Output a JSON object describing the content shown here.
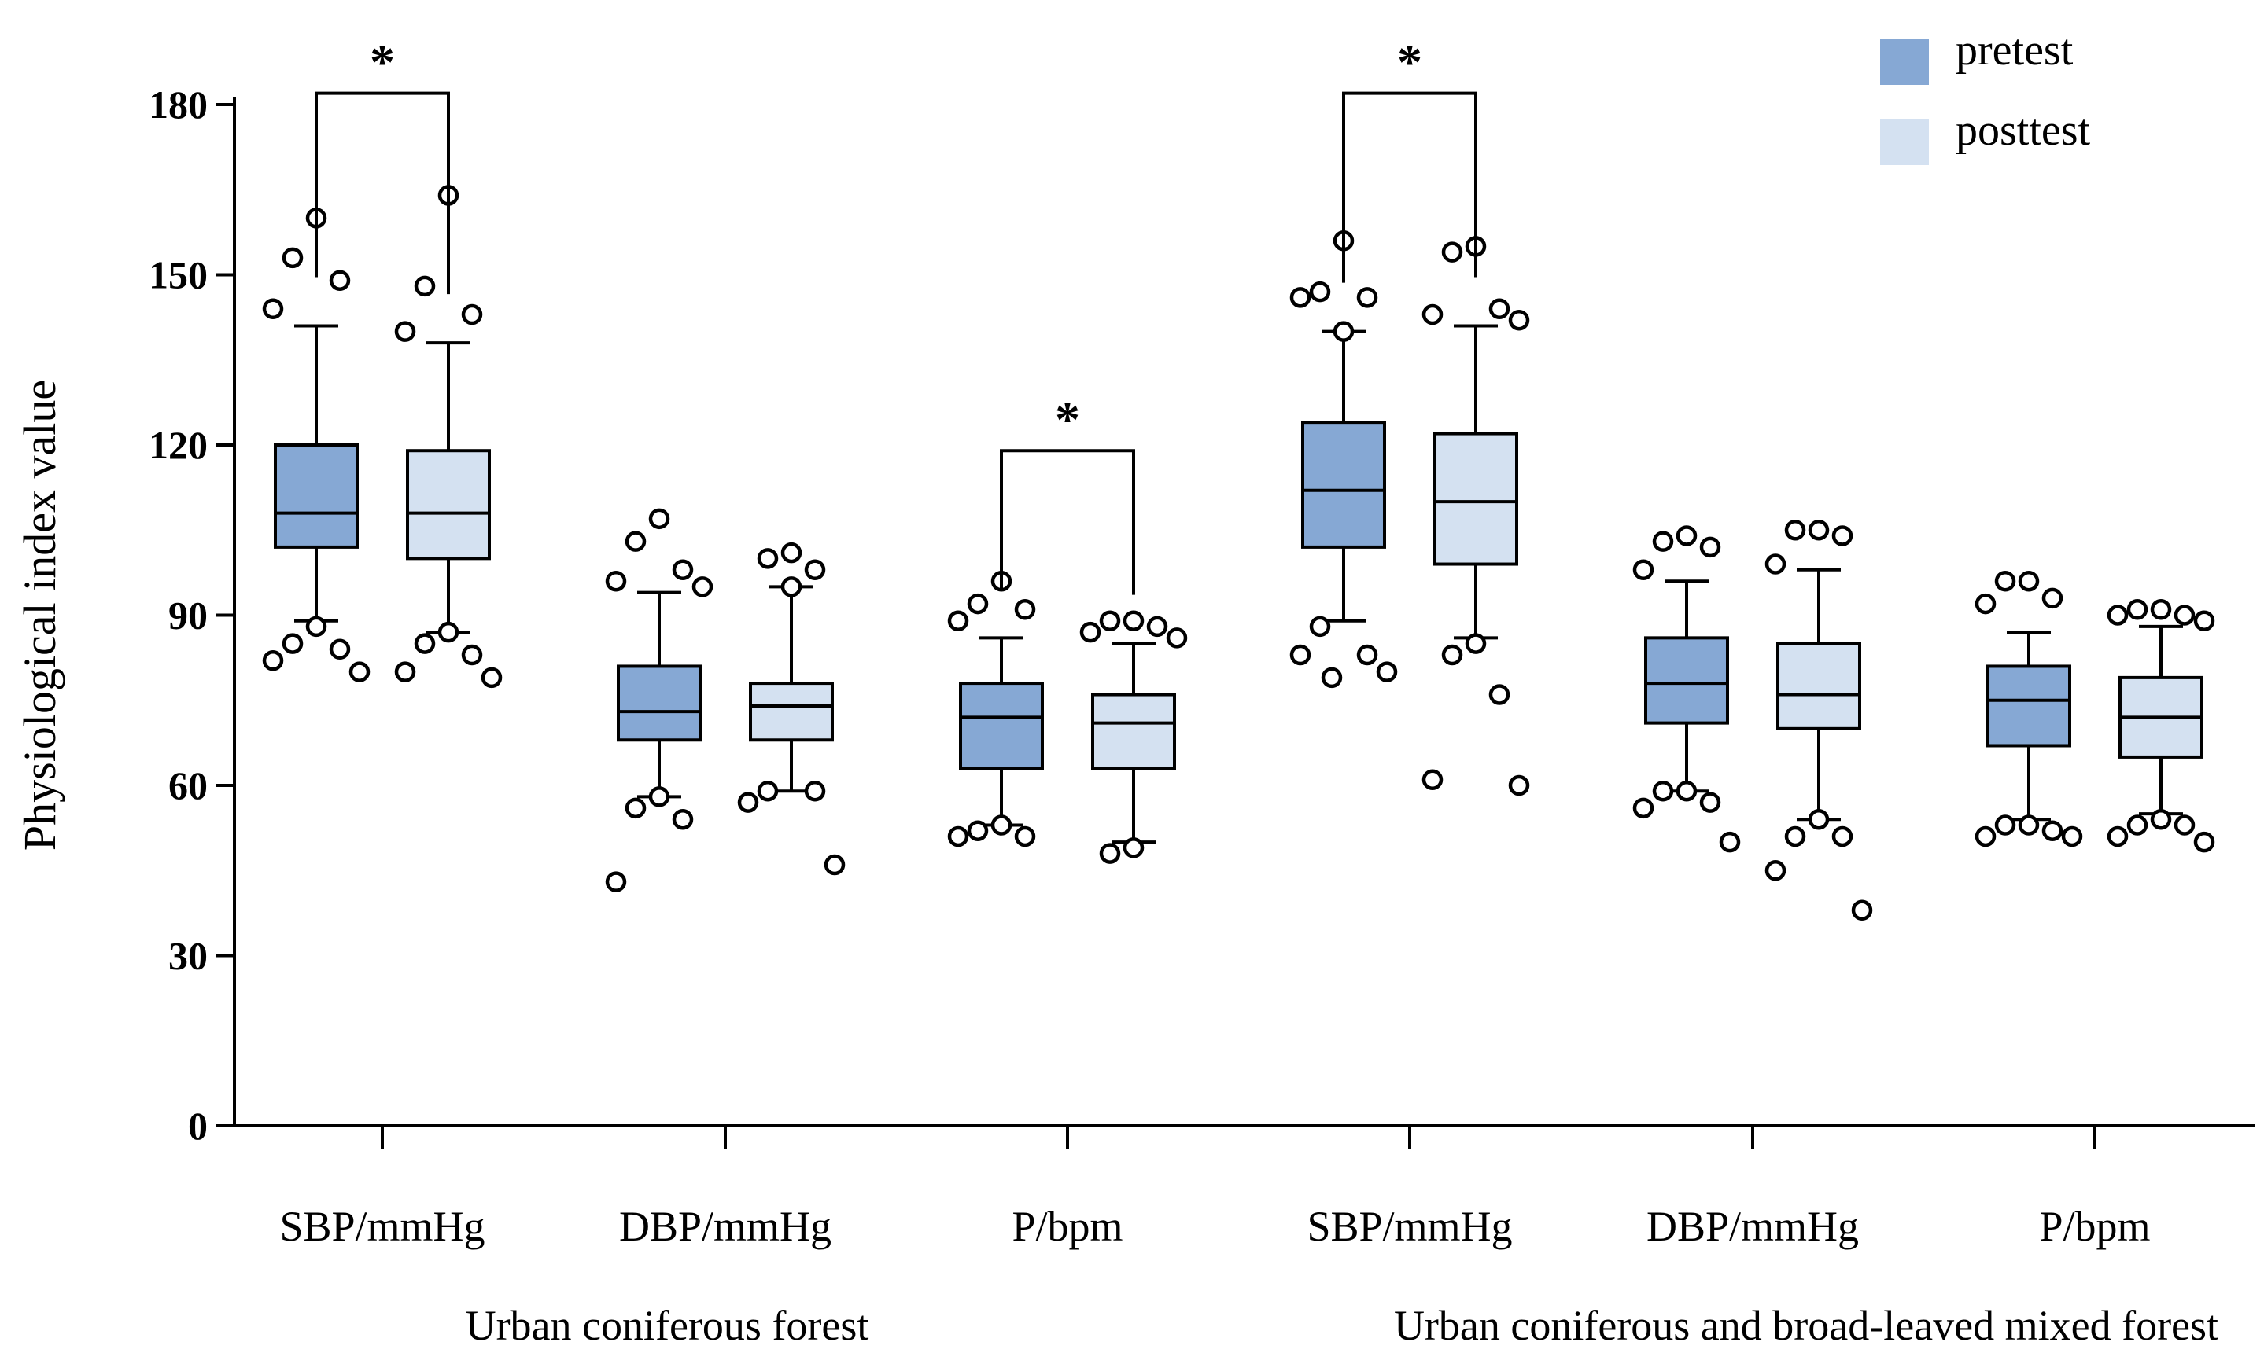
{
  "chart_data": {
    "type": "boxplot",
    "ylabel": "Physiological index value",
    "xlabel": "",
    "ylim": [
      0,
      180
    ],
    "yticks": [
      0,
      30,
      60,
      90,
      120,
      150,
      180
    ],
    "grid": false,
    "legend_position": "top-right",
    "series": [
      {
        "name": "pretest",
        "color": "#86a8d4"
      },
      {
        "name": "posttest",
        "color": "#d4e1f1"
      }
    ],
    "categories": [
      "SBP/mmHg",
      "DBP/mmHg",
      "P/bpm",
      "SBP/mmHg",
      "DBP/mmHg",
      "P/bpm"
    ],
    "groups": [
      {
        "label": "Urban coniferous forest",
        "category_indices": [
          0,
          1,
          2
        ]
      },
      {
        "label": "Urban coniferous and broad-leaved mixed forest",
        "category_indices": [
          3,
          4,
          5
        ]
      }
    ],
    "boxes": [
      {
        "category": 0,
        "series": "pretest",
        "whisker_low": 89,
        "q1": 102,
        "median": 108,
        "q3": 120,
        "whisker_high": 141,
        "outliers": [
          160,
          153,
          149,
          144,
          88,
          85,
          84,
          82,
          80
        ]
      },
      {
        "category": 0,
        "series": "posttest",
        "whisker_low": 87,
        "q1": 100,
        "median": 108,
        "q3": 119,
        "whisker_high": 138,
        "outliers": [
          164,
          148,
          143,
          140,
          87,
          85,
          83,
          80,
          79
        ]
      },
      {
        "category": 1,
        "series": "pretest",
        "whisker_low": 58,
        "q1": 68,
        "median": 73,
        "q3": 81,
        "whisker_high": 94,
        "outliers": [
          107,
          103,
          98,
          96,
          95,
          58,
          56,
          54,
          43
        ]
      },
      {
        "category": 1,
        "series": "posttest",
        "whisker_low": 59,
        "q1": 68,
        "median": 74,
        "q3": 78,
        "whisker_high": 95,
        "outliers": [
          101,
          100,
          98,
          95,
          59,
          59,
          57,
          46
        ]
      },
      {
        "category": 2,
        "series": "pretest",
        "whisker_low": 53,
        "q1": 63,
        "median": 72,
        "q3": 78,
        "whisker_high": 86,
        "outliers": [
          96,
          92,
          91,
          89,
          53,
          52,
          51,
          51
        ]
      },
      {
        "category": 2,
        "series": "posttest",
        "whisker_low": 50,
        "q1": 63,
        "median": 71,
        "q3": 76,
        "whisker_high": 85,
        "outliers": [
          89,
          89,
          88,
          87,
          86,
          49,
          48
        ]
      },
      {
        "category": 3,
        "series": "pretest",
        "whisker_low": 89,
        "q1": 102,
        "median": 112,
        "q3": 124,
        "whisker_high": 140,
        "outliers": [
          156,
          147,
          146,
          146,
          140,
          88,
          83,
          83,
          80,
          79
        ]
      },
      {
        "category": 3,
        "series": "posttest",
        "whisker_low": 86,
        "q1": 99,
        "median": 110,
        "q3": 122,
        "whisker_high": 141,
        "outliers": [
          155,
          154,
          144,
          143,
          142,
          85,
          83,
          76,
          61,
          60
        ]
      },
      {
        "category": 4,
        "series": "pretest",
        "whisker_low": 59,
        "q1": 71,
        "median": 78,
        "q3": 86,
        "whisker_high": 96,
        "outliers": [
          104,
          103,
          102,
          98,
          59,
          59,
          57,
          56,
          50
        ]
      },
      {
        "category": 4,
        "series": "posttest",
        "whisker_low": 54,
        "q1": 70,
        "median": 76,
        "q3": 85,
        "whisker_high": 98,
        "outliers": [
          105,
          105,
          104,
          99,
          54,
          51,
          51,
          45,
          38
        ]
      },
      {
        "category": 5,
        "series": "pretest",
        "whisker_low": 54,
        "q1": 67,
        "median": 75,
        "q3": 81,
        "whisker_high": 87,
        "outliers": [
          96,
          96,
          93,
          92,
          53,
          53,
          52,
          51,
          51
        ]
      },
      {
        "category": 5,
        "series": "posttest",
        "whisker_low": 55,
        "q1": 65,
        "median": 72,
        "q3": 79,
        "whisker_high": 88,
        "outliers": [
          91,
          91,
          90,
          90,
          89,
          54,
          53,
          53,
          51,
          50
        ]
      }
    ],
    "significance": [
      {
        "category": 0,
        "label": "*",
        "level": 182
      },
      {
        "category": 2,
        "label": "*",
        "level": 119
      },
      {
        "category": 3,
        "label": "*",
        "level": 182
      }
    ]
  }
}
